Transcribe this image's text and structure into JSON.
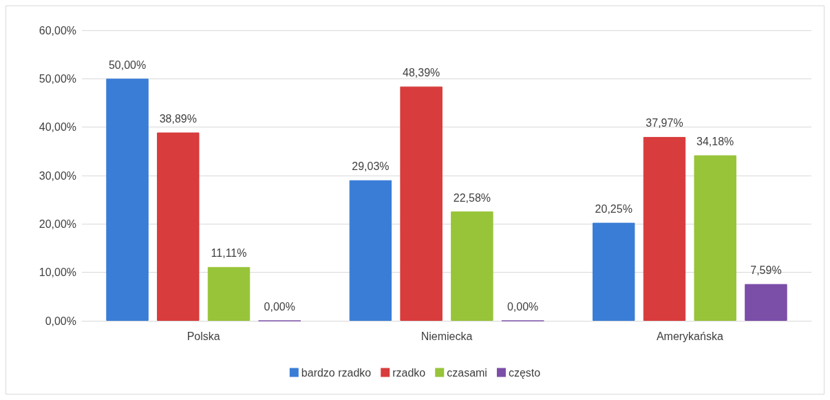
{
  "chart_data": {
    "type": "bar",
    "categories": [
      "Polska",
      "Niemiecka",
      "Amerykańska"
    ],
    "series": [
      {
        "name": "bardzo rzadko",
        "color": "#3a7dd6",
        "values": [
          50.0,
          29.03,
          20.25
        ],
        "value_labels": [
          "50,00%",
          "29,03%",
          "20,25%"
        ]
      },
      {
        "name": "rzadko",
        "color": "#d83c3c",
        "values": [
          38.89,
          48.39,
          37.97
        ],
        "value_labels": [
          "38,89%",
          "48,39%",
          "37,97%"
        ]
      },
      {
        "name": "czasami",
        "color": "#98c43a",
        "values": [
          11.11,
          22.58,
          34.18
        ],
        "value_labels": [
          "11,11%",
          "22,58%",
          "34,18%"
        ]
      },
      {
        "name": "często",
        "color": "#7b4ea8",
        "values": [
          0.0,
          0.0,
          7.59
        ],
        "value_labels": [
          "0,00%",
          "0,00%",
          "7,59%"
        ]
      }
    ],
    "ylim": [
      0,
      60
    ],
    "yticks": [
      {
        "value": 0,
        "label": "0,00%"
      },
      {
        "value": 10,
        "label": "10,00%"
      },
      {
        "value": 20,
        "label": "20,00%"
      },
      {
        "value": 30,
        "label": "30,00%"
      },
      {
        "value": 40,
        "label": "40,00%"
      },
      {
        "value": 50,
        "label": "50,00%"
      },
      {
        "value": 60,
        "label": "60,00%"
      }
    ],
    "grid": "y",
    "legend": "bottom"
  }
}
